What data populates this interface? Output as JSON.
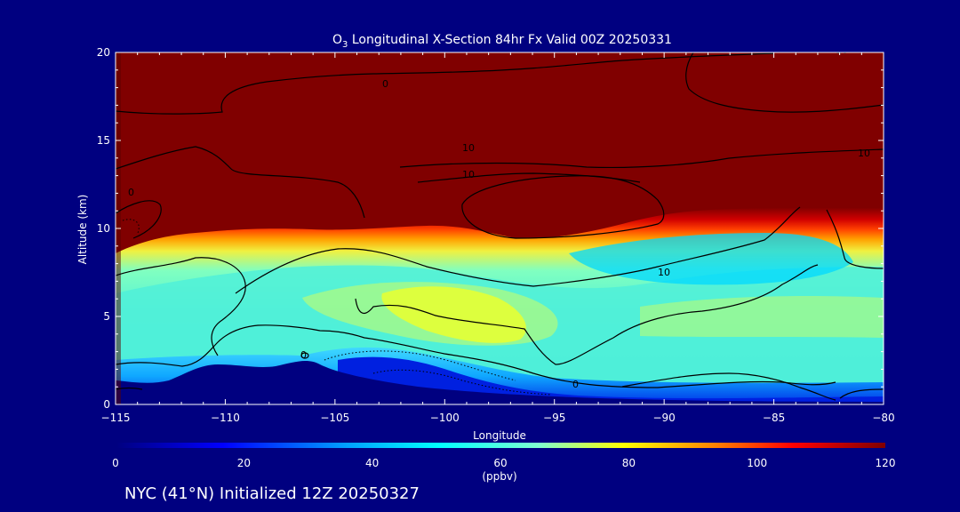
{
  "chart_data": {
    "type": "heatmap",
    "title": {
      "species": "O",
      "species_sub": "3",
      "rest": " Longitudinal X-Section 84hr  Fx Valid 00Z 20250331"
    },
    "xlabel": "Longitude",
    "ylabel": "Altitude (km)",
    "xlim": [
      -115,
      -80
    ],
    "ylim": [
      0,
      20
    ],
    "x_ticks": [
      -115,
      -110,
      -105,
      -100,
      -95,
      -90,
      -85,
      -80
    ],
    "x_tick_labels": [
      "−115",
      "−110",
      "−105",
      "−100",
      "−95",
      "−90",
      "−85",
      "−80"
    ],
    "y_ticks": [
      0,
      5,
      10,
      15,
      20
    ],
    "colorbar": {
      "label": "(ppbv)",
      "range": [
        0,
        120
      ],
      "ticks": [
        0,
        20,
        40,
        60,
        80,
        100,
        120
      ],
      "colors": [
        "#00007f",
        "#0000ff",
        "#00a0ff",
        "#00ffff",
        "#7fffd0",
        "#ffff00",
        "#ff8000",
        "#ff0000",
        "#7f0000"
      ]
    },
    "field_colors": {
      "stratosphere": "#800000",
      "transition": [
        "#800000",
        "#c80000",
        "#ff2000",
        "#ff8000",
        "#ffd000",
        "#d0ff50",
        "#80ffc0"
      ],
      "mid_troposphere": "#50f0d8",
      "max_band": "#ffff00",
      "lower_band": "#00d8ff",
      "boundary": "#0020e0",
      "terrain": "#000080"
    },
    "contour_labels": [
      "0",
      "10",
      "10",
      "10",
      "0",
      "10",
      "0",
      "10",
      "0"
    ],
    "footer": "NYC (41°N) Initialized 12Z 20250327"
  }
}
